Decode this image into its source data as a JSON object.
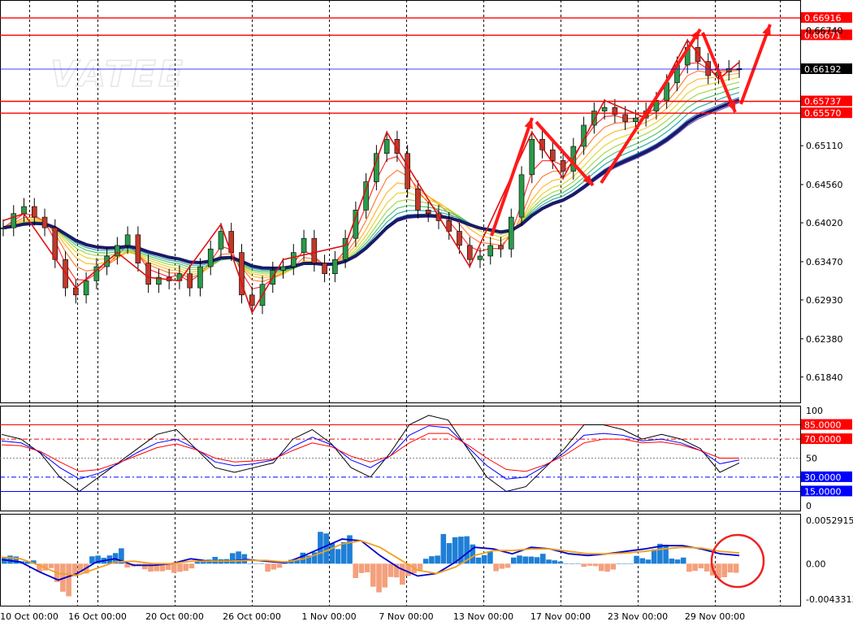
{
  "watermark": "VATEE",
  "chart_data": [
    {
      "type": "candlestick",
      "panel": "price",
      "ylim": [
        0.6155,
        0.671
      ],
      "y_ticks": [
        "0.66740",
        "0.66192",
        "0.65110",
        "0.64560",
        "0.64020",
        "0.63470",
        "0.62930",
        "0.62380",
        "0.61840"
      ],
      "y_tick_values": [
        0.6674,
        0.66192,
        0.6511,
        0.6456,
        0.6402,
        0.6347,
        0.6293,
        0.6238,
        0.6184
      ],
      "x_ticks": [
        "10 Oct 00:00",
        "16 Oct 00:00",
        "20 Oct 00:00",
        "26 Oct 00:00",
        "1 Nov 00:00",
        "7 Nov 00:00",
        "13 Nov 00:00",
        "17 Nov 00:00",
        "23 Nov 00:00",
        "29 Nov 00:00"
      ],
      "current_price": {
        "value": 0.66192,
        "label": "0.66192",
        "color": "#0000ff"
      },
      "levels": [
        {
          "value": 0.66916,
          "label": "0.66916",
          "color": "#ff0000"
        },
        {
          "value": 0.66671,
          "label": "0.66671",
          "color": "#ff0000"
        },
        {
          "value": 0.65737,
          "label": "0.65737",
          "color": "#ff0000"
        },
        {
          "value": 0.6557,
          "label": "0.65570",
          "color": "#ff0000"
        }
      ],
      "close_path": [
        [
          0,
          0.6395
        ],
        [
          1,
          0.6415
        ],
        [
          2,
          0.6425
        ],
        [
          3,
          0.641
        ],
        [
          4,
          0.6395
        ],
        [
          5,
          0.635
        ],
        [
          6,
          0.631
        ],
        [
          7,
          0.63
        ],
        [
          8,
          0.632
        ],
        [
          9,
          0.634
        ],
        [
          10,
          0.6355
        ],
        [
          11,
          0.637
        ],
        [
          12,
          0.6385
        ],
        [
          13,
          0.6345
        ],
        [
          14,
          0.6315
        ],
        [
          15,
          0.6325
        ],
        [
          16,
          0.632
        ],
        [
          17,
          0.633
        ],
        [
          18,
          0.631
        ],
        [
          19,
          0.634
        ],
        [
          20,
          0.6365
        ],
        [
          21,
          0.639
        ],
        [
          22,
          0.636
        ],
        [
          23,
          0.63
        ],
        [
          24,
          0.6285
        ],
        [
          25,
          0.6315
        ],
        [
          26,
          0.6335
        ],
        [
          27,
          0.634
        ],
        [
          28,
          0.636
        ],
        [
          29,
          0.638
        ],
        [
          30,
          0.6345
        ],
        [
          31,
          0.633
        ],
        [
          32,
          0.635
        ],
        [
          33,
          0.638
        ],
        [
          34,
          0.642
        ],
        [
          35,
          0.646
        ],
        [
          36,
          0.65
        ],
        [
          37,
          0.652
        ],
        [
          38,
          0.65
        ],
        [
          39,
          0.645
        ],
        [
          40,
          0.642
        ],
        [
          41,
          0.6415
        ],
        [
          42,
          0.6405
        ],
        [
          43,
          0.639
        ],
        [
          44,
          0.637
        ],
        [
          45,
          0.635
        ],
        [
          46,
          0.6355
        ],
        [
          47,
          0.637
        ],
        [
          48,
          0.6365
        ],
        [
          49,
          0.641
        ],
        [
          50,
          0.647
        ],
        [
          51,
          0.652
        ],
        [
          52,
          0.6505
        ],
        [
          53,
          0.649
        ],
        [
          54,
          0.6475
        ],
        [
          55,
          0.651
        ],
        [
          56,
          0.654
        ],
        [
          57,
          0.656
        ],
        [
          58,
          0.6565
        ],
        [
          59,
          0.6555
        ],
        [
          60,
          0.6545
        ],
        [
          61,
          0.655
        ],
        [
          62,
          0.656
        ],
        [
          63,
          0.6575
        ],
        [
          64,
          0.66
        ],
        [
          65,
          0.6625
        ],
        [
          66,
          0.665
        ],
        [
          67,
          0.663
        ],
        [
          68,
          0.661
        ],
        [
          69,
          0.6615
        ],
        [
          70,
          0.662
        ],
        [
          71,
          0.6619
        ]
      ],
      "indicators": [
        "Rainbow moving averages",
        "Slow moving average (navy)",
        "ZigZag (red)"
      ]
    },
    {
      "type": "line",
      "panel": "stochastic",
      "ylim": [
        0,
        100
      ],
      "y_ticks": [
        "100",
        "50",
        "0"
      ],
      "levels": [
        {
          "value": 85,
          "label": "85.0000",
          "color": "#ff0000"
        },
        {
          "value": 70,
          "label": "70.0000",
          "color": "#ff0000"
        },
        {
          "value": 30,
          "label": "30.0000",
          "color": "#0000ff"
        },
        {
          "value": 15,
          "label": "15.0000",
          "color": "#0000ff"
        }
      ],
      "series": [
        {
          "color": "#000000",
          "values": [
            75,
            70,
            55,
            30,
            15,
            30,
            45,
            60,
            75,
            80,
            60,
            40,
            35,
            40,
            45,
            70,
            80,
            65,
            40,
            30,
            55,
            85,
            95,
            90,
            60,
            30,
            15,
            20,
            40,
            60,
            85,
            85,
            80,
            70,
            75,
            70,
            60,
            35,
            45
          ]
        },
        {
          "color": "#0000ff",
          "values": [
            68,
            66,
            56,
            40,
            28,
            34,
            44,
            56,
            66,
            70,
            60,
            46,
            42,
            44,
            48,
            62,
            72,
            64,
            48,
            40,
            52,
            74,
            84,
            82,
            62,
            42,
            28,
            30,
            42,
            56,
            74,
            76,
            74,
            68,
            70,
            66,
            58,
            44,
            48
          ]
        },
        {
          "color": "#ff0000",
          "values": [
            64,
            63,
            57,
            46,
            36,
            38,
            45,
            53,
            61,
            65,
            59,
            50,
            46,
            47,
            49,
            58,
            66,
            62,
            52,
            46,
            52,
            66,
            76,
            76,
            64,
            50,
            38,
            36,
            43,
            53,
            66,
            70,
            70,
            66,
            67,
            64,
            58,
            50,
            50
          ]
        }
      ]
    },
    {
      "type": "bar",
      "panel": "macd",
      "ylim": [
        -0.0043313,
        0.0052915
      ],
      "y_ticks": [
        "0.0052915",
        "0.00",
        "-0.0043313"
      ],
      "positive_color": "#1e7fd6",
      "negative_color": "#f4a07c",
      "histogram": [
        0.001,
        0.0005,
        -0.001,
        -0.004,
        -0.002,
        0.001,
        0.002,
        -0.0005,
        -0.001,
        -0.0015,
        -0.001,
        0.0005,
        0.001,
        0.0015,
        0.0,
        -0.001,
        0.0005,
        0.002,
        0.004,
        0.0035,
        -0.002,
        -0.0035,
        -0.003,
        -0.0015,
        0.001,
        0.005,
        0.0035,
        0.0015,
        -0.001,
        0.001,
        0.0015,
        0.0005,
        0.0,
        -0.0005,
        -0.001,
        0.0,
        0.001,
        0.0025,
        0.001,
        -0.001,
        -0.0018,
        -0.002
      ],
      "series": [
        {
          "color": "#0000cc",
          "values": [
            0.0005,
            0.0002,
            -0.001,
            -0.002,
            -0.0012,
            0.0002,
            0.0006,
            -0.0002,
            -0.0002,
            0.0,
            0.0006,
            0.0003,
            0.0003,
            0.0005,
            0.0003,
            0.0001,
            0.001,
            0.002,
            0.003,
            0.0028,
            0.001,
            -0.0005,
            -0.0015,
            -0.0012,
            0.0002,
            0.002,
            0.0018,
            0.0012,
            0.002,
            0.0018,
            0.0012,
            0.001,
            0.0012,
            0.0015,
            0.0018,
            0.0022,
            0.0022,
            0.0018,
            0.0012,
            0.001
          ]
        },
        {
          "color": "#f0a020",
          "values": [
            0.0008,
            0.0006,
            -0.0002,
            -0.0012,
            -0.0014,
            -0.0006,
            0.0002,
            0.0003,
            0.0,
            0.0,
            0.0003,
            0.0003,
            0.0003,
            0.0004,
            0.0004,
            0.0002,
            0.0006,
            0.0014,
            0.0024,
            0.0028,
            0.002,
            0.0006,
            -0.0008,
            -0.0012,
            -0.0004,
            0.001,
            0.0016,
            0.0016,
            0.0018,
            0.0018,
            0.0015,
            0.0012,
            0.0012,
            0.0013,
            0.0015,
            0.0018,
            0.002,
            0.0019,
            0.0015,
            0.0013
          ]
        }
      ]
    }
  ]
}
